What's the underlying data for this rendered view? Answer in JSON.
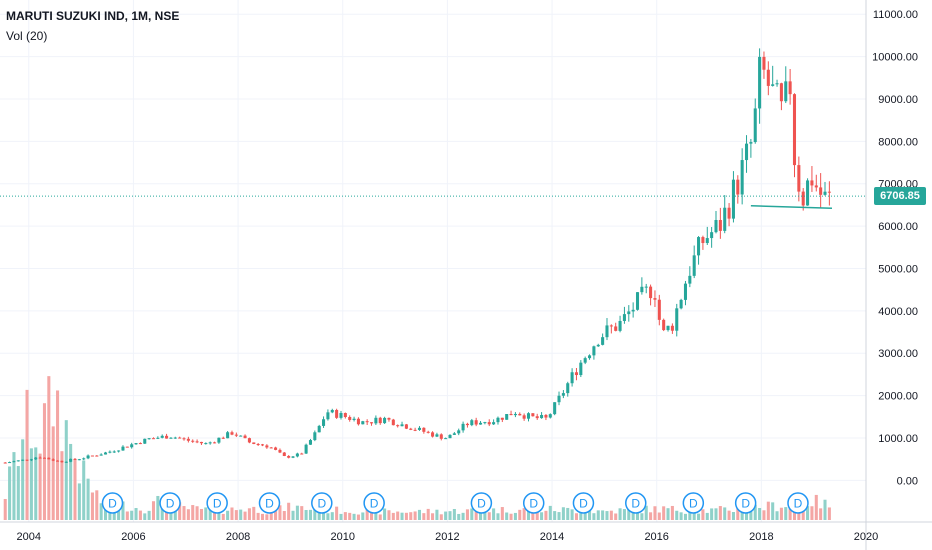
{
  "legend": {
    "symbol": "MARUTI SUZUKI IND, 1M, NSE",
    "volume": "Vol (20)"
  },
  "last_price_label": "6706.85",
  "colors": {
    "up": "#26a69a",
    "down": "#ef5350",
    "vol_up": "#8fd1c9",
    "vol_down": "#f4a6a4",
    "grid": "#f0f3fa",
    "axis_text": "#131722",
    "marker": "#2196f3"
  },
  "chart_data": {
    "type": "candlestick",
    "title": "MARUTI SUZUKI IND, 1M, NSE",
    "x_ticks": [
      "2004",
      "2006",
      "2008",
      "2010",
      "2012",
      "2014",
      "2016",
      "2018",
      "2020"
    ],
    "x_tick_years": [
      2004,
      2006,
      2008,
      2010,
      2012,
      2014,
      2016,
      2018,
      2020
    ],
    "x_range": [
      2003.45,
      2020.0
    ],
    "y_ticks": [
      "0.00",
      "1000.00",
      "2000.00",
      "3000.00",
      "4000.00",
      "5000.00",
      "6000.00",
      "7000.00",
      "8000.00",
      "9000.00",
      "10000.00",
      "11000.00"
    ],
    "y_tick_values": [
      0,
      1000,
      2000,
      3000,
      4000,
      5000,
      6000,
      7000,
      8000,
      9000,
      10000,
      11000
    ],
    "y_range": [
      -700,
      11100
    ],
    "last_price": 6706.85,
    "dividend_marker_label": "D",
    "dividend_markers": [
      2005.6,
      2006.7,
      2007.6,
      2008.6,
      2009.6,
      2010.6,
      2012.65,
      2013.65,
      2014.6,
      2015.6,
      2016.7,
      2017.7,
      2018.7
    ],
    "support_line": {
      "from": [
        2017.8,
        6480
      ],
      "to": [
        2019.35,
        6420
      ]
    },
    "price_anchors": [
      [
        2003.55,
        420
      ],
      [
        2003.9,
        480
      ],
      [
        2004.2,
        560
      ],
      [
        2004.6,
        440
      ],
      [
        2005.0,
        520
      ],
      [
        2005.5,
        660
      ],
      [
        2005.9,
        820
      ],
      [
        2006.3,
        980
      ],
      [
        2006.7,
        1050
      ],
      [
        2007.0,
        950
      ],
      [
        2007.4,
        860
      ],
      [
        2007.9,
        1130
      ],
      [
        2008.2,
        900
      ],
      [
        2008.6,
        800
      ],
      [
        2008.9,
        540
      ],
      [
        2009.2,
        620
      ],
      [
        2009.5,
        1150
      ],
      [
        2009.7,
        1620
      ],
      [
        2010.0,
        1520
      ],
      [
        2010.4,
        1370
      ],
      [
        2010.8,
        1450
      ],
      [
        2011.3,
        1250
      ],
      [
        2011.8,
        1050
      ],
      [
        2012.0,
        1000
      ],
      [
        2012.4,
        1350
      ],
      [
        2012.9,
        1420
      ],
      [
        2013.3,
        1620
      ],
      [
        2013.6,
        1480
      ],
      [
        2013.9,
        1450
      ],
      [
        2014.1,
        1850
      ],
      [
        2014.5,
        2700
      ],
      [
        2014.9,
        3400
      ],
      [
        2015.3,
        3700
      ],
      [
        2015.7,
        4300
      ],
      [
        2015.95,
        4600
      ],
      [
        2016.1,
        3400
      ],
      [
        2016.3,
        3700
      ],
      [
        2016.6,
        4900
      ],
      [
        2016.9,
        5700
      ],
      [
        2017.2,
        6000
      ],
      [
        2017.6,
        7200
      ],
      [
        2017.85,
        8100
      ],
      [
        2017.95,
        9500
      ],
      [
        2018.05,
        9550
      ],
      [
        2018.25,
        9000
      ],
      [
        2018.4,
        8600
      ],
      [
        2018.55,
        9350
      ],
      [
        2018.65,
        7300
      ],
      [
        2018.8,
        6700
      ],
      [
        2018.95,
        7200
      ],
      [
        2019.1,
        6800
      ],
      [
        2019.25,
        6600
      ],
      [
        2019.35,
        6706.85
      ]
    ],
    "volume_range": [
      0,
      2300
    ],
    "volume_profile": [
      [
        2003.5,
        300
      ],
      [
        2003.7,
        900
      ],
      [
        2004.0,
        1700
      ],
      [
        2004.2,
        1400
      ],
      [
        2004.5,
        2100
      ],
      [
        2004.8,
        1300
      ],
      [
        2005.0,
        800
      ],
      [
        2005.4,
        300
      ],
      [
        2005.8,
        250
      ],
      [
        2006.2,
        180
      ],
      [
        2006.5,
        320
      ],
      [
        2007.0,
        200
      ],
      [
        2007.6,
        160
      ],
      [
        2008.2,
        200
      ],
      [
        2008.6,
        150
      ],
      [
        2009.0,
        220
      ],
      [
        2009.5,
        180
      ],
      [
        2010.0,
        160
      ],
      [
        2011.0,
        140
      ],
      [
        2012.0,
        150
      ],
      [
        2013.0,
        170
      ],
      [
        2014.0,
        180
      ],
      [
        2015.0,
        150
      ],
      [
        2016.0,
        190
      ],
      [
        2017.0,
        160
      ],
      [
        2018.0,
        220
      ],
      [
        2018.5,
        260
      ],
      [
        2019.0,
        320
      ],
      [
        2019.35,
        230
      ]
    ]
  }
}
